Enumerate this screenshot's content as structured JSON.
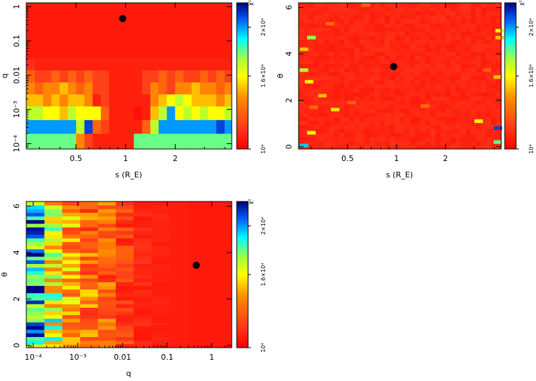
{
  "chart_data": [
    {
      "id": "panel-s-q",
      "type": "heatmap",
      "title": "",
      "xlabel": "s (R_E)",
      "ylabel": "q",
      "x_scale": "log",
      "y_scale": "log",
      "xlim": [
        0.25,
        4.4
      ],
      "ylim": [
        7e-05,
        1.3
      ],
      "xticks": [
        {
          "v": 0.5,
          "label": "0.5"
        },
        {
          "v": 1,
          "label": "1"
        },
        {
          "v": 2,
          "label": "2"
        }
      ],
      "yticks": [
        {
          "v": 1,
          "label": "1"
        },
        {
          "v": 0.1,
          "label": "0.1"
        },
        {
          "v": 0.01,
          "label": "0.01"
        },
        {
          "v": 0.001,
          "label": "10⁻³"
        },
        {
          "v": 0.0001,
          "label": "10⁻⁴"
        }
      ],
      "colorbar": {
        "label": "χ²",
        "min": 10000,
        "max": 22000,
        "ticks": [
          {
            "v": 10000,
            "label": "10⁴"
          },
          {
            "v": 16000,
            "label": "1.6×10⁴"
          },
          {
            "v": 20000,
            "label": "2×10⁴"
          }
        ]
      },
      "best_fit": {
        "x": 0.96,
        "y": 0.45
      },
      "grid_x_edges_log10": [
        -0.6,
        -0.55,
        -0.5,
        -0.45,
        -0.4,
        -0.35,
        -0.3,
        -0.25,
        -0.2,
        -0.15,
        -0.1,
        -0.05,
        0,
        0.05,
        0.1,
        0.15,
        0.2,
        0.25,
        0.3,
        0.35,
        0.4,
        0.45,
        0.5,
        0.55,
        0.6,
        0.65
      ],
      "grid_y_edges_log10": [
        -4.15,
        -3.7,
        -3.3,
        -2.9,
        -2.55,
        -2.2,
        -1.85,
        -1.5,
        0.11
      ],
      "cells_chi2_x1000": [
        [
          18,
          18,
          18,
          18,
          18,
          18,
          14,
          12,
          11,
          11,
          11,
          11,
          11,
          18,
          18,
          18,
          18,
          18,
          18,
          18,
          18,
          18,
          18,
          18,
          18
        ],
        [
          20,
          20,
          20,
          20,
          20,
          20,
          17,
          21,
          13,
          12,
          11,
          11,
          11,
          11,
          13,
          17,
          20,
          20,
          20,
          20,
          20,
          20,
          20,
          21,
          20
        ],
        [
          17,
          17,
          16,
          16,
          15,
          17,
          16,
          16,
          16,
          13,
          11,
          11,
          11,
          10.5,
          11,
          15,
          17,
          20,
          16,
          17,
          16,
          17,
          16,
          16,
          17
        ],
        [
          15,
          15,
          14,
          15,
          14,
          15,
          15,
          14,
          11,
          12,
          11,
          11,
          11,
          11,
          11,
          14,
          15,
          16,
          17,
          16,
          15,
          15,
          15,
          14,
          15
        ],
        [
          14,
          13,
          14,
          14,
          15,
          14,
          13,
          14,
          12,
          12,
          11,
          11,
          11,
          11,
          12,
          14,
          13,
          12,
          14,
          14,
          15,
          14,
          14,
          13,
          14
        ],
        [
          13,
          12,
          12,
          13,
          12,
          13,
          12,
          13,
          12,
          12,
          11,
          11,
          11,
          11,
          12,
          12,
          13,
          12,
          13,
          12,
          12,
          13,
          12,
          13,
          12
        ],
        [
          11.5,
          11,
          11,
          11,
          11,
          11,
          11,
          11,
          11,
          11,
          11,
          11,
          11,
          11,
          11,
          11,
          11,
          11,
          11,
          11,
          11,
          11,
          11,
          11,
          11
        ],
        [
          10.8,
          10.8,
          10.8,
          10.8,
          10.8,
          10.8,
          10.8,
          10.8,
          10.8,
          10.8,
          10.8,
          10.8,
          10.8,
          10.8,
          10.8,
          10.8,
          10.8,
          10.8,
          10.8,
          10.8,
          10.8,
          10.8,
          10.8,
          10.8,
          10.8
        ]
      ]
    },
    {
      "id": "panel-s-theta",
      "type": "heatmap",
      "title": "",
      "xlabel": "s (R_E)",
      "ylabel": "θ",
      "x_scale": "log",
      "y_scale": "linear",
      "xlim": [
        0.25,
        4.4
      ],
      "ylim": [
        -0.1,
        6.2
      ],
      "xticks": [
        {
          "v": 0.5,
          "label": "0.5"
        },
        {
          "v": 1,
          "label": "1"
        },
        {
          "v": 2,
          "label": "2"
        }
      ],
      "yticks": [
        {
          "v": 0,
          "label": "0"
        },
        {
          "v": 2,
          "label": "2"
        },
        {
          "v": 4,
          "label": "4"
        },
        {
          "v": 6,
          "label": "6"
        }
      ],
      "colorbar": {
        "label": "χ²",
        "min": 10000,
        "max": 22000,
        "ticks": [
          {
            "v": 10000,
            "label": "10⁴"
          },
          {
            "v": 16000,
            "label": "1.6×10⁴"
          },
          {
            "v": 20000,
            "label": "2×10⁴"
          }
        ]
      },
      "best_fit": {
        "x": 0.96,
        "y": 3.45
      },
      "background_chi2": 10800,
      "outliers": [
        {
          "x": 0.27,
          "y": 0.05,
          "chi2": 19500
        },
        {
          "x": 0.3,
          "y": 0.6,
          "chi2": 16000
        },
        {
          "x": 0.3,
          "y": 4.7,
          "chi2": 17500
        },
        {
          "x": 0.27,
          "y": 3.3,
          "chi2": 17000
        },
        {
          "x": 0.27,
          "y": 4.2,
          "chi2": 15000
        },
        {
          "x": 0.29,
          "y": 2.8,
          "chi2": 15800
        },
        {
          "x": 0.35,
          "y": 2.2,
          "chi2": 15000
        },
        {
          "x": 0.31,
          "y": 1.7,
          "chi2": 13000
        },
        {
          "x": 0.42,
          "y": 1.6,
          "chi2": 15500
        },
        {
          "x": 0.39,
          "y": 5.3,
          "chi2": 13200
        },
        {
          "x": 0.53,
          "y": 1.9,
          "chi2": 12800
        },
        {
          "x": 0.65,
          "y": 6.1,
          "chi2": 13000
        },
        {
          "x": 1.5,
          "y": 1.75,
          "chi2": 13200
        },
        {
          "x": 3.2,
          "y": 1.1,
          "chi2": 16000
        },
        {
          "x": 4.2,
          "y": 0.8,
          "chi2": 21000
        },
        {
          "x": 4.2,
          "y": 0.2,
          "chi2": 18000
        },
        {
          "x": 4.3,
          "y": 5.0,
          "chi2": 15800
        },
        {
          "x": 4.3,
          "y": 4.7,
          "chi2": 15000
        },
        {
          "x": 4.2,
          "y": 3.0,
          "chi2": 15000
        },
        {
          "x": 3.6,
          "y": 3.3,
          "chi2": 12800
        }
      ]
    },
    {
      "id": "panel-q-theta",
      "type": "heatmap",
      "title": "",
      "xlabel": "q",
      "ylabel": "θ",
      "x_scale": "log",
      "y_scale": "linear",
      "xlim": [
        7e-05,
        2.8
      ],
      "ylim": [
        -0.1,
        6.2
      ],
      "xticks": [
        {
          "v": 0.0001,
          "label": "10⁻⁴"
        },
        {
          "v": 0.001,
          "label": "10⁻³"
        },
        {
          "v": 0.01,
          "label": "0.01"
        },
        {
          "v": 0.1,
          "label": "0.1"
        },
        {
          "v": 1,
          "label": "1"
        }
      ],
      "yticks": [
        {
          "v": 0,
          "label": "0"
        },
        {
          "v": 2,
          "label": "2"
        },
        {
          "v": 4,
          "label": "4"
        },
        {
          "v": 6,
          "label": "6"
        }
      ],
      "colorbar": {
        "label": "χ²",
        "min": 10000,
        "max": 22000,
        "ticks": [
          {
            "v": 10000,
            "label": "10⁴"
          },
          {
            "v": 16000,
            "label": "1.6×10⁴"
          },
          {
            "v": 20000,
            "label": "2×10⁴"
          }
        ]
      },
      "best_fit": {
        "x": 0.45,
        "y": 3.45
      },
      "column_edges_log10": [
        -4.15,
        -3.75,
        -3.35,
        -2.95,
        -2.55,
        -2.15,
        -1.75,
        -1.35,
        -0.95,
        -0.55,
        -0.15,
        0.45
      ],
      "column_base_chi2": [
        19500,
        16500,
        14500,
        13500,
        12800,
        11800,
        11200,
        11000,
        10900,
        10800,
        10800
      ],
      "column_spread_chi2": [
        3000,
        3000,
        2500,
        2200,
        2000,
        1200,
        500,
        200,
        0,
        0,
        0
      ]
    }
  ]
}
